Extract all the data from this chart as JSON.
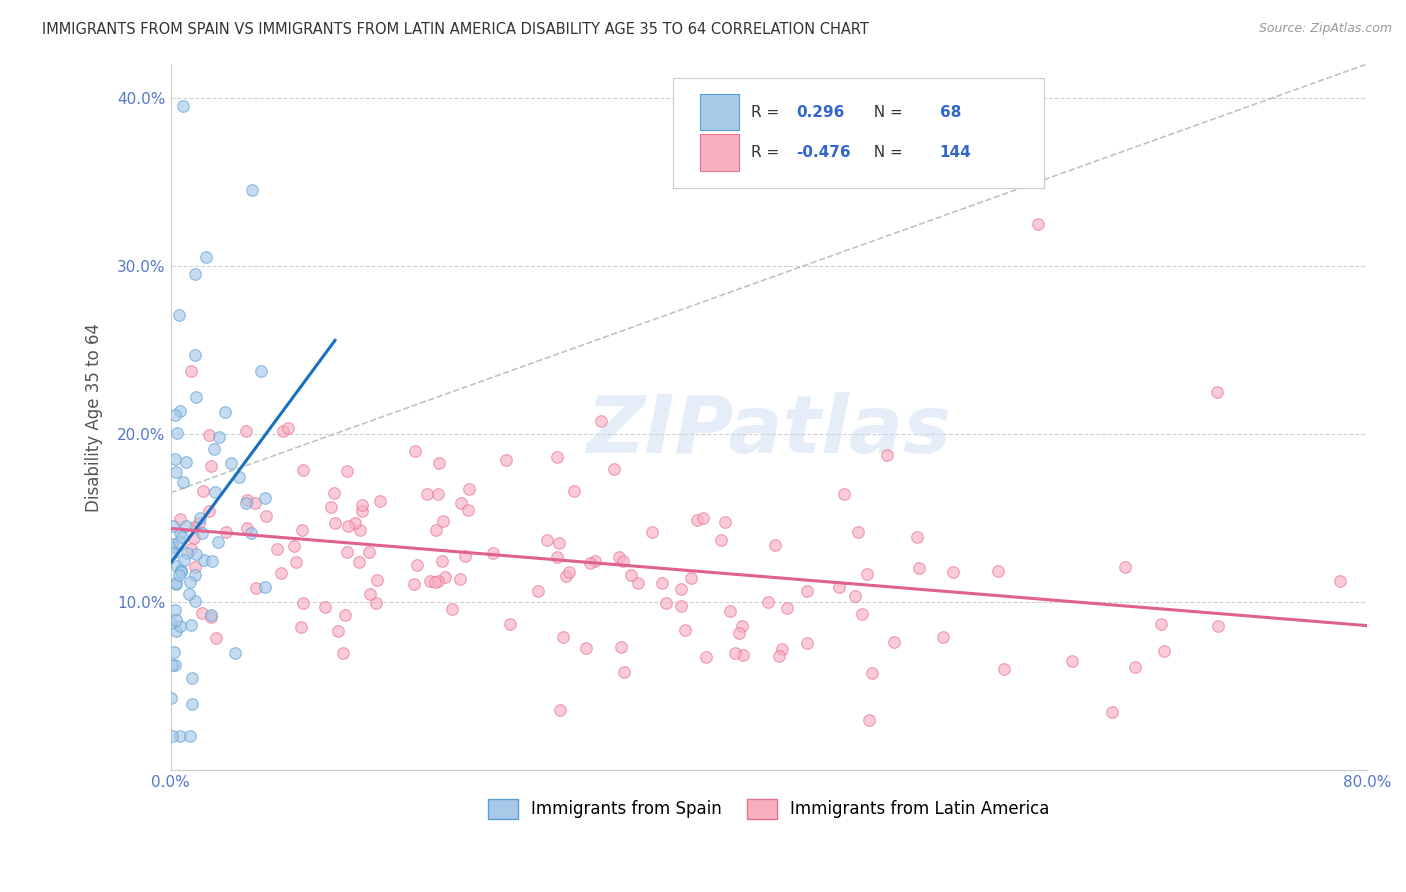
{
  "title": "IMMIGRANTS FROM SPAIN VS IMMIGRANTS FROM LATIN AMERICA DISABILITY AGE 35 TO 64 CORRELATION CHART",
  "source": "Source: ZipAtlas.com",
  "ylabel": "Disability Age 35 to 64",
  "xlim": [
    0,
    0.8
  ],
  "ylim": [
    0,
    0.42
  ],
  "R_spain": 0.296,
  "N_spain": 68,
  "R_latam": -0.476,
  "N_latam": 144,
  "color_spain_fill": "#a8c8e8",
  "color_spain_edge": "#5a9fd4",
  "color_spain_line": "#1a6fbe",
  "color_latam_fill": "#f8b0c0",
  "color_latam_edge": "#e87090",
  "color_latam_line": "#e06090",
  "legend_label_spain": "Immigrants from Spain",
  "legend_label_latam": "Immigrants from Latin America",
  "watermark_text": "ZIPatlas",
  "background_color": "#ffffff",
  "grid_color": "#cccccc",
  "axis_tick_color": "#5577cc",
  "ylabel_color": "#555555",
  "title_color": "#333333",
  "source_color": "#999999",
  "legend_text_color": "#333333",
  "legend_value_color": "#3366cc"
}
